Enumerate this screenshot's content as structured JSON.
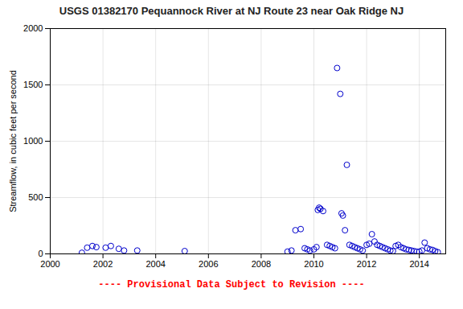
{
  "chart_data": {
    "type": "scatter",
    "title": "USGS 01382170 Pequannock River at NJ Route 23 near Oak Ridge NJ",
    "ylabel": "Streamflow, in cubic feet per second",
    "annotations": [
      "---- Provisional Data Subject to Revision ----"
    ],
    "x": [
      2001.2,
      2001.4,
      2001.6,
      2001.75,
      2002.1,
      2002.3,
      2002.6,
      2002.8,
      2003.3,
      2005.1,
      2009.0,
      2009.15,
      2009.3,
      2009.5,
      2009.65,
      2009.75,
      2009.85,
      2010.0,
      2010.1,
      2010.15,
      2010.2,
      2010.25,
      2010.35,
      2010.5,
      2010.6,
      2010.7,
      2010.8,
      2010.88,
      2011.0,
      2011.05,
      2011.1,
      2011.18,
      2011.25,
      2011.35,
      2011.45,
      2011.55,
      2011.65,
      2011.75,
      2011.85,
      2012.0,
      2012.1,
      2012.2,
      2012.3,
      2012.4,
      2012.5,
      2012.6,
      2012.7,
      2012.8,
      2012.9,
      2013.0,
      2013.1,
      2013.2,
      2013.3,
      2013.4,
      2013.5,
      2013.6,
      2013.7,
      2013.8,
      2013.9,
      2014.0,
      2014.1,
      2014.2,
      2014.3,
      2014.4,
      2014.5,
      2014.6,
      2014.7
    ],
    "values": [
      10,
      55,
      70,
      60,
      55,
      70,
      45,
      30,
      30,
      25,
      20,
      30,
      210,
      220,
      50,
      40,
      30,
      40,
      60,
      390,
      410,
      400,
      380,
      80,
      70,
      60,
      50,
      1650,
      1420,
      360,
      340,
      210,
      790,
      80,
      70,
      60,
      50,
      40,
      30,
      80,
      90,
      175,
      110,
      80,
      70,
      60,
      50,
      40,
      30,
      25,
      70,
      80,
      60,
      50,
      40,
      35,
      30,
      25,
      20,
      20,
      30,
      100,
      50,
      40,
      35,
      25,
      15
    ],
    "color": "#0000CC",
    "marker": "circle",
    "xlim": [
      2000,
      2015
    ],
    "ylim": [
      0,
      2000
    ],
    "xticks": [
      2000,
      2002,
      2004,
      2006,
      2008,
      2010,
      2012,
      2014
    ],
    "yticks": [
      0,
      500,
      1000,
      1500,
      2000
    ],
    "grid": true
  }
}
